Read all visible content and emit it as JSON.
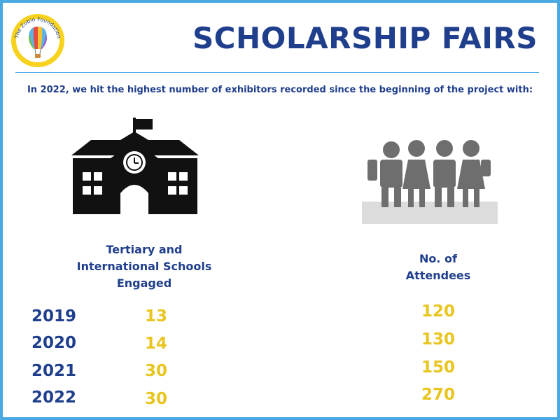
{
  "logo": {
    "text": "The Zubin Foundation",
    "icon": "hot-air-balloon-logo"
  },
  "header": {
    "title": "SCHOLARSHIP FAIRS"
  },
  "subtitle": "In 2022, we hit the highest number of exhibitors recorded since the beginning of the project with:",
  "icons": {
    "school": "school-building-icon",
    "people": "attendees-people-icon"
  },
  "colors": {
    "navy": "#1f3e8c",
    "accent": "#e8c51f",
    "border": "#4aa8e0",
    "icon": "#111111",
    "people": "#6e6e6e"
  },
  "columns": {
    "schools_heading": [
      "Tertiary and",
      "International Schools",
      "Engaged"
    ],
    "attendees_heading": [
      "No. of",
      "Attendees"
    ]
  },
  "rows": [
    {
      "year": "2019",
      "schools": "13",
      "attendees": "120"
    },
    {
      "year": "2020",
      "schools": "14",
      "attendees": "130"
    },
    {
      "year": "2021",
      "schools": "30",
      "attendees": "150"
    },
    {
      "year": "2022",
      "schools": "30",
      "attendees": "270"
    }
  ]
}
